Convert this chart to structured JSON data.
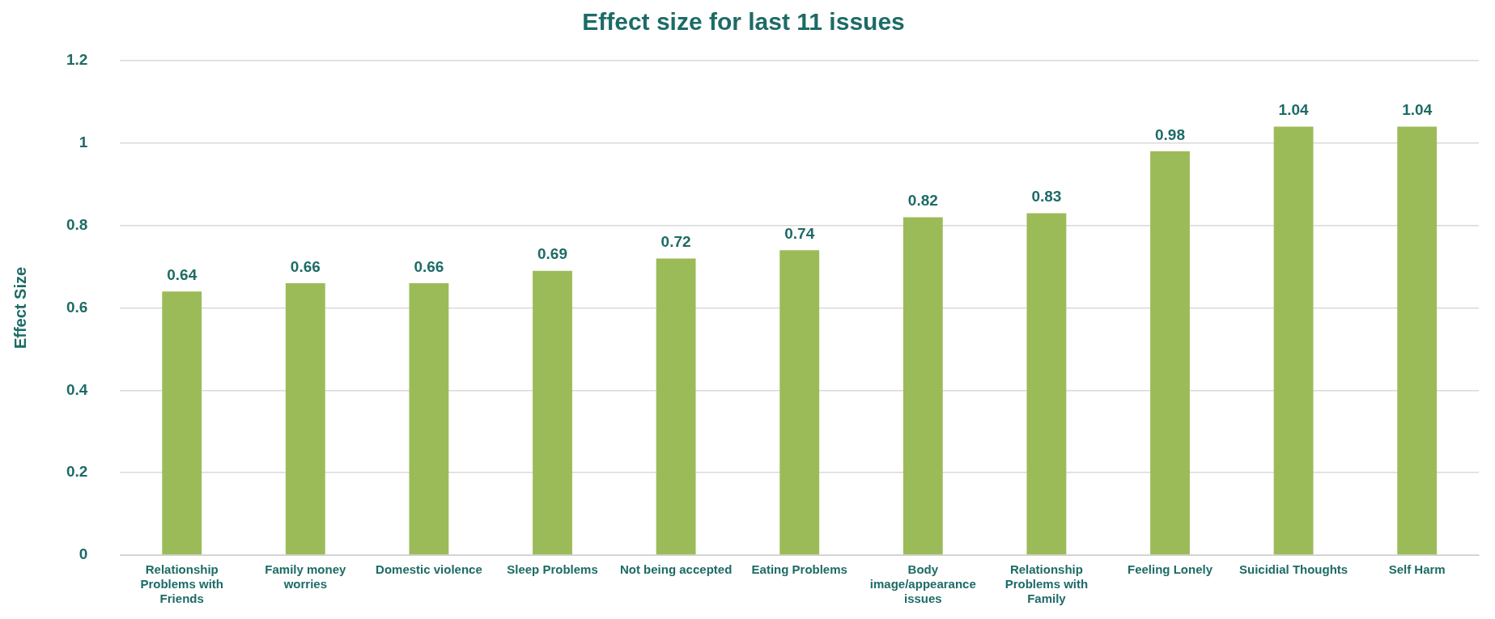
{
  "chart_data": {
    "type": "bar",
    "title": "Effect size for last 11 issues",
    "ylabel": "Effect Size",
    "categories": [
      "Relationship Problems with Friends",
      "Family money worries",
      "Domestic violence",
      "Sleep Problems",
      "Not being accepted",
      "Eating Problems",
      "Body image/appearance issues",
      "Relationship Problems with Family",
      "Feeling Lonely",
      "Suicidial Thoughts",
      "Self Harm"
    ],
    "values": [
      0.64,
      0.66,
      0.66,
      0.69,
      0.72,
      0.74,
      0.82,
      0.83,
      0.98,
      1.04,
      1.04
    ],
    "color": "#9bbb59",
    "ylim": [
      0,
      1.2
    ],
    "yticks": [
      0,
      0.2,
      0.4,
      0.6,
      0.8,
      1,
      1.2
    ],
    "grid": "y",
    "data_labels": true,
    "legend": false
  }
}
